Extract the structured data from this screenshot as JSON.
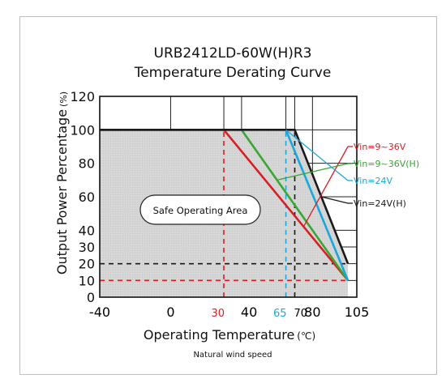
{
  "chart_data": {
    "type": "line",
    "title": "URB2412LD-60W(H)R3",
    "subtitle": "Temperature Derating Curve",
    "xlabel": "Operating Temperature",
    "xlabel_unit": "(℃)",
    "ylabel": "Output Power Percentage",
    "ylabel_unit": "(%)",
    "footnote": "Natural wind speed",
    "xlim": [
      -40,
      105
    ],
    "ylim": [
      0,
      120
    ],
    "x_ticks": [
      {
        "label": "-40",
        "value": -40,
        "color": "#000000"
      },
      {
        "label": "0",
        "value": 0,
        "color": "#000000"
      },
      {
        "label": "30",
        "value": 30,
        "color": "#d81f26"
      },
      {
        "label": "40",
        "value": 40,
        "color": "#000000"
      },
      {
        "label": "65",
        "value": 65,
        "color": "#1aa7dc"
      },
      {
        "label": "70",
        "value": 70,
        "color": "#000000"
      },
      {
        "label": "80",
        "value": 80,
        "color": "#000000"
      },
      {
        "label": "105",
        "value": 105,
        "color": "#000000"
      }
    ],
    "y_ticks": [
      {
        "label": "0",
        "value": 0
      },
      {
        "label": "10",
        "value": 10
      },
      {
        "label": "20",
        "value": 20
      },
      {
        "label": "30",
        "value": 30
      },
      {
        "label": "40",
        "value": 40
      },
      {
        "label": "60",
        "value": 60
      },
      {
        "label": "80",
        "value": 80
      },
      {
        "label": "100",
        "value": 100
      },
      {
        "label": "120",
        "value": 120
      }
    ],
    "grid": true,
    "area_label": "Safe Operating Area",
    "series": [
      {
        "name": "Vin=9~36V",
        "color": "#d81f26",
        "x": [
          -40,
          30,
          100
        ],
        "y": [
          100,
          100,
          10
        ]
      },
      {
        "name": "Vin=9~36V(H)",
        "color": "#3aa635",
        "x": [
          -40,
          40,
          100
        ],
        "y": [
          100,
          100,
          10
        ]
      },
      {
        "name": "Vin=24V",
        "color": "#1aa7dc",
        "x": [
          -40,
          65,
          100
        ],
        "y": [
          100,
          100,
          10
        ]
      },
      {
        "name": "Vin=24V(H)",
        "color": "#1a1a1a",
        "x": [
          -40,
          70,
          100
        ],
        "y": [
          100,
          100,
          20
        ]
      }
    ],
    "legend_label_x": [
      75,
      60,
      65,
      85
    ],
    "reference_lines": [
      {
        "axis": "x",
        "value": 30,
        "color": "#d81f26",
        "to_y": 100
      },
      {
        "axis": "x",
        "value": 65,
        "color": "#1aa7dc",
        "to_y": 100
      },
      {
        "axis": "x",
        "value": 70,
        "color": "#1a1a1a",
        "to_y": 100
      },
      {
        "axis": "y",
        "value": 20,
        "color": "#1a1a1a",
        "to_x": 100
      },
      {
        "axis": "y",
        "value": 10,
        "color": "#3aa635",
        "to_x": 100
      },
      {
        "axis": "y",
        "value": 10,
        "color": "#d81f26",
        "to_x": 100
      }
    ]
  }
}
